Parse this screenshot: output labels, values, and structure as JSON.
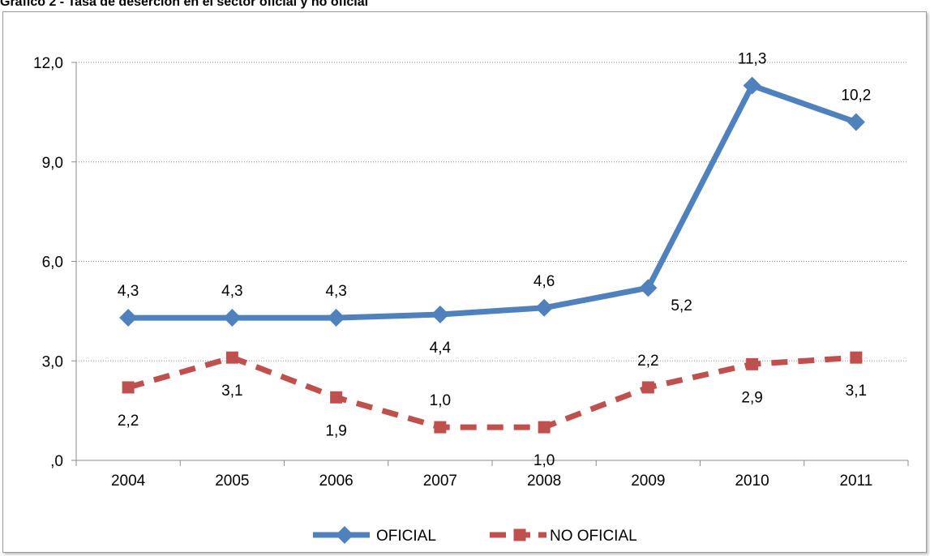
{
  "caption": "Gráfico 2 - Tasa de deserción en el sector oficial y no oficial",
  "chart_data": {
    "type": "line",
    "title": "",
    "xlabel": "",
    "ylabel": "",
    "categories": [
      "2004",
      "2005",
      "2006",
      "2007",
      "2008",
      "2009",
      "2010",
      "2011"
    ],
    "ylim": [
      0,
      12
    ],
    "yticks": [
      0,
      3,
      6,
      9,
      12
    ],
    "ytick_labels": [
      ",0",
      "3,0",
      "6,0",
      "9,0",
      "12,0"
    ],
    "grid": "horizontal dotted",
    "legend_position": "bottom",
    "series": [
      {
        "name": "OFICIAL",
        "values": [
          4.3,
          4.3,
          4.3,
          4.4,
          4.6,
          5.2,
          11.3,
          10.2
        ],
        "labels": [
          "4,3",
          "4,3",
          "4,3",
          "4,4",
          "4,6",
          "5,2",
          "11,3",
          "10,2"
        ],
        "color": "#4f81bd",
        "marker": "diamond",
        "line_style": "solid"
      },
      {
        "name": "NO OFICIAL",
        "values": [
          2.2,
          3.1,
          1.9,
          1.0,
          1.0,
          2.2,
          2.9,
          3.1
        ],
        "labels": [
          "2,2",
          "3,1",
          "1,9",
          "1,0",
          "1,0",
          "2,2",
          "2,9",
          "3,1"
        ],
        "color": "#c0504d",
        "marker": "square",
        "line_style": "dashed"
      }
    ]
  }
}
